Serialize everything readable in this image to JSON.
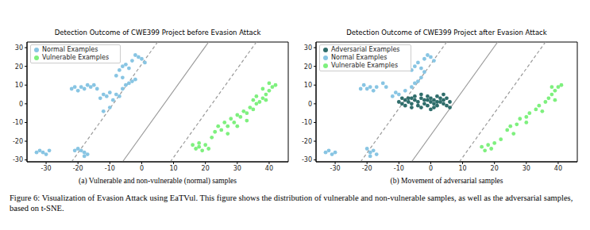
{
  "chart_data": [
    {
      "type": "scatter",
      "title": "Detection Outcome of CWE399 Project before Evasion Attack",
      "caption": "(a) Vulnerable and non-vulnerable (normal) samples",
      "xlim": [
        -36,
        46
      ],
      "ylim": [
        -31,
        33
      ],
      "xticks": [
        -30,
        -20,
        -10,
        0,
        10,
        20,
        30,
        40
      ],
      "yticks": [
        -30,
        -20,
        -10,
        0,
        10,
        20,
        30
      ],
      "legend": "upper left",
      "series": [
        {
          "name": "Normal Examples",
          "color": "#88c5e3",
          "x": [
            -33,
            -32,
            -31,
            -30,
            -29,
            -20,
            -19,
            -18,
            -17,
            -18,
            -21,
            -22,
            -21,
            -20,
            -19,
            -18,
            -17,
            -16,
            -15,
            -14,
            -13,
            -12,
            -11,
            -10,
            -9,
            -8,
            -7,
            -6,
            -5,
            -4,
            -3,
            -2,
            -7,
            -6,
            -5,
            -4,
            -3,
            -2,
            -1,
            0,
            1,
            -8,
            -6,
            -10,
            -12
          ],
          "y": [
            -26,
            -25,
            -26,
            -27,
            -25,
            -24,
            -25,
            -26,
            -27,
            -28,
            -25,
            8,
            9,
            7,
            9,
            8,
            10,
            9,
            10,
            8,
            3,
            5,
            4,
            6,
            2,
            5,
            4,
            8,
            10,
            11,
            12,
            13,
            18,
            20,
            21,
            19,
            23,
            26,
            25,
            24,
            22,
            15,
            14,
            -2,
            -4
          ]
        },
        {
          "name": "Vulnerable Examples",
          "color": "#7ef07e",
          "x": [
            16,
            17,
            18,
            19,
            20,
            18,
            21,
            23,
            24,
            25,
            26,
            27,
            28,
            29,
            30,
            31,
            32,
            33,
            34,
            35,
            36,
            37,
            38,
            39,
            40,
            41,
            42,
            40,
            38,
            36,
            33,
            30,
            27,
            22,
            35,
            39
          ],
          "y": [
            -22,
            -24,
            -23,
            -25,
            -22,
            -21,
            -24,
            -15,
            -12,
            -14,
            -10,
            -12,
            -8,
            -10,
            -6,
            -7,
            -4,
            -5,
            -2,
            -3,
            0,
            1,
            3,
            5,
            7,
            9,
            10,
            11,
            8,
            4,
            -9,
            -12,
            -16,
            -18,
            2,
            2
          ]
        }
      ],
      "lines": [
        {
          "x": [
            -22,
            5
          ],
          "y": [
            -31,
            33
          ],
          "line_style": "dashed"
        },
        {
          "x": [
            -6,
            21
          ],
          "y": [
            -31,
            33
          ],
          "line_style": "solid"
        },
        {
          "x": [
            9,
            36
          ],
          "y": [
            -31,
            33
          ],
          "line_style": "dashed"
        }
      ]
    },
    {
      "type": "scatter",
      "title": "Detection Outcome of CWE399 Project after Evasion Attack",
      "caption": "(b) Movement of adversarial samples",
      "xlim": [
        -36,
        46
      ],
      "ylim": [
        -31,
        33
      ],
      "xticks": [
        -30,
        -20,
        -10,
        0,
        10,
        20,
        30,
        40
      ],
      "yticks": [
        -30,
        -20,
        -10,
        0,
        10,
        20,
        30
      ],
      "legend": "upper left",
      "series": [
        {
          "name": "Normal Examples",
          "color": "#88c5e3",
          "x": [
            -33,
            -32,
            -31,
            -30,
            -20,
            -19,
            -18,
            -17,
            -19,
            -22,
            -21,
            -20,
            -19,
            -18,
            -17,
            -15,
            -14,
            -12,
            -11,
            -10,
            -8,
            -6,
            -5,
            -4,
            -3,
            -6,
            -5,
            -4,
            -3,
            -2,
            -1,
            0,
            1,
            -2
          ],
          "y": [
            -26,
            -25,
            -27,
            -26,
            -24,
            -26,
            -25,
            -27,
            -28,
            8,
            10,
            8,
            9,
            7,
            9,
            11,
            9,
            4,
            6,
            5,
            7,
            9,
            11,
            12,
            14,
            18,
            20,
            22,
            19,
            24,
            26,
            25,
            23,
            17
          ]
        },
        {
          "name": "Vulnerable Examples",
          "color": "#7ef07e",
          "x": [
            16,
            17,
            18,
            19,
            20,
            24,
            25,
            27,
            28,
            30,
            31,
            33,
            34,
            36,
            37,
            38,
            39,
            40,
            41,
            38,
            35,
            30,
            26,
            22,
            39
          ],
          "y": [
            -23,
            -25,
            -22,
            -24,
            -21,
            -14,
            -12,
            -11,
            -8,
            -7,
            -5,
            -3,
            -1,
            1,
            3,
            5,
            7,
            9,
            10,
            9,
            -4,
            -10,
            -16,
            -19,
            2
          ]
        },
        {
          "name": "Adversarial Examples",
          "color": "#2f6d6b",
          "x": [
            -9,
            -8,
            -8,
            -7,
            -7,
            -6,
            -6,
            -5,
            -5,
            -4,
            -4,
            -3,
            -3,
            -2,
            -2,
            -1,
            -1,
            0,
            0,
            1,
            1,
            1,
            2,
            2,
            3,
            3,
            4,
            4,
            5,
            5,
            6,
            6,
            -10,
            -9,
            -3,
            0,
            2,
            -6,
            4,
            -1
          ],
          "y": [
            0,
            2,
            -1,
            1,
            3,
            -2,
            0,
            2,
            4,
            -1,
            1,
            3,
            -2,
            0,
            2,
            4,
            -1,
            1,
            3,
            -2,
            0,
            2,
            4,
            -1,
            1,
            3,
            0,
            2,
            -1,
            3,
            1,
            -2,
            1,
            3,
            5,
            -3,
            1,
            3,
            5,
            2
          ]
        }
      ],
      "lines": [
        {
          "x": [
            -22,
            5
          ],
          "y": [
            -31,
            33
          ],
          "line_style": "dashed"
        },
        {
          "x": [
            -6,
            21
          ],
          "y": [
            -31,
            33
          ],
          "line_style": "solid"
        },
        {
          "x": [
            9,
            36
          ],
          "y": [
            -31,
            33
          ],
          "line_style": "dashed"
        }
      ]
    }
  ],
  "figure_caption": "Figure 6: Visualization of Evasion Attack using EaTVul. This figure shows the distribution of vulnerable and non-vulnerable samples, as well as the adversarial samples, based on t-SNE."
}
